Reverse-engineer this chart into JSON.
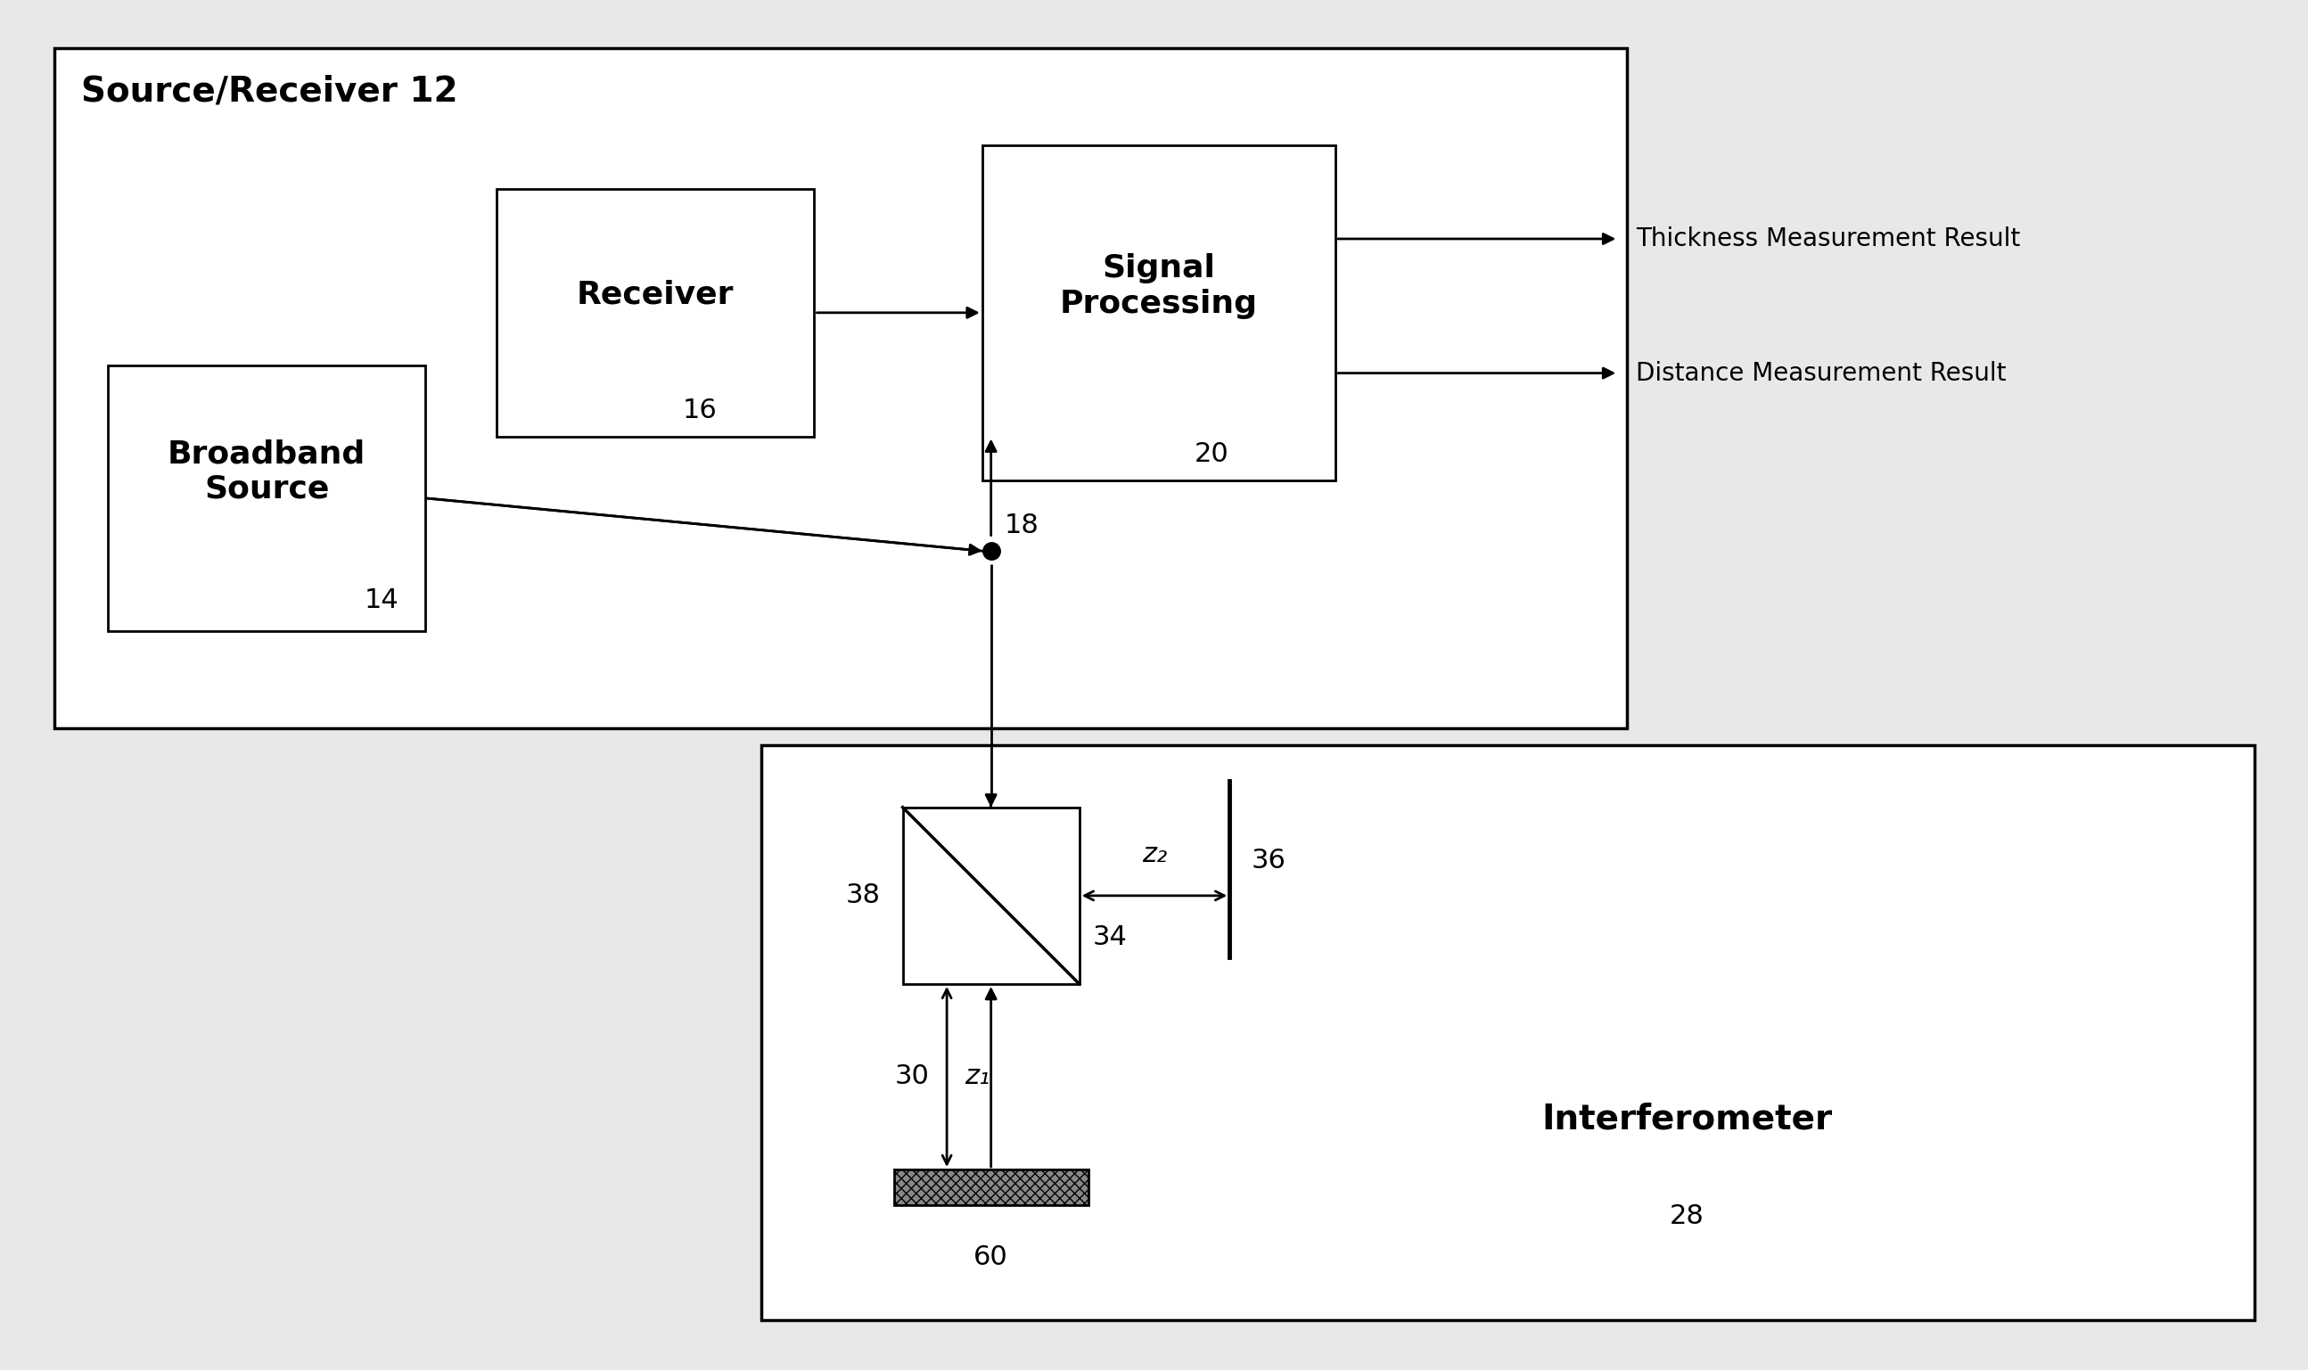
{
  "bg_color": "#e8e8e8",
  "fig_bg": "#e8e8e8",
  "line_color": "black",
  "box_color": "white",
  "title": "Source/Receiver 12",
  "receiver_label": "Receiver",
  "receiver_num": "16",
  "signal_label": "Signal\nProcessing",
  "signal_num": "20",
  "broadband_label": "Broadband\nSource",
  "broadband_num": "14",
  "interferometer_label": "Interferometer",
  "interferometer_num": "28",
  "output1": "Thickness Measurement Result",
  "output2": "Distance Measurement Result",
  "splitter_num": "18",
  "mirror_num": "34",
  "z2_label": "z₂",
  "z1_label": "z₁",
  "ref_num": "36",
  "ref_arm_num": "30",
  "sample_num": "38",
  "wafer_num": "60",
  "lw": 2.0,
  "fs_title": 28,
  "fs_label": 26,
  "fs_num": 22,
  "fs_output": 20
}
